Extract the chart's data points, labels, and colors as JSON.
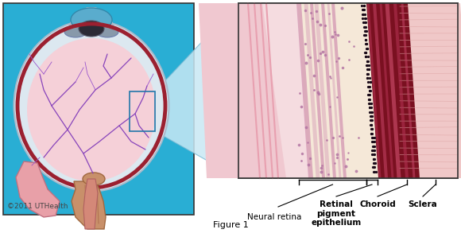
{
  "title": "Figure 1",
  "copyright_text": "©2011 UTHealth",
  "background_color": "#ffffff",
  "left_panel_bg": "#29aed4",
  "border_color": "#333333",
  "label_neural_retina": "Neural retina",
  "label_retinal_pigment": "Retinal\npigment\nepithelium",
  "label_choroid": "Choroid",
  "label_sclera": "Sclera",
  "fig_width": 5.8,
  "fig_height": 2.98,
  "dpi": 100,
  "annotation_font_size": 7.5,
  "copyright_font_size": 6.5,
  "title_font_size": 8
}
